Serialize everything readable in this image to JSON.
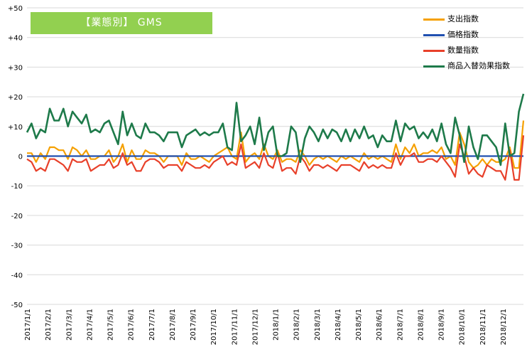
{
  "chart_data": {
    "type": "line",
    "title": "【業態別】 GMS",
    "ylim": [
      -50,
      50
    ],
    "yticks": [
      50,
      40,
      30,
      20,
      10,
      0,
      -10,
      -20,
      -30,
      -40,
      -50
    ],
    "ytick_labels": [
      "+50",
      "+40",
      "+30",
      "+20",
      "+10",
      "0",
      "-10",
      "-20",
      "-30",
      "-40",
      "-50"
    ],
    "xtick_labels": [
      "2017/1/1",
      "2017/2/1",
      "2017/3/1",
      "2017/4/1",
      "2017/5/1",
      "2017/6/1",
      "2017/7/1",
      "2017/8/1",
      "2017/9/1",
      "2017/10/1",
      "2017/11/1",
      "2017/12/1",
      "2018/1/1",
      "2018/2/1",
      "2018/3/1",
      "2018/4/1",
      "2018/5/1",
      "2018/6/1",
      "2018/7/1",
      "2018/8/1",
      "2018/9/1",
      "2018/10/1",
      "2018/11/1",
      "2018/12/1"
    ],
    "grid": true,
    "legend_position": "top-right",
    "series": [
      {
        "name": "支出指数",
        "color": "#f5a000",
        "values": [
          1,
          1,
          -2,
          1,
          -1,
          3,
          3,
          2,
          2,
          -1,
          3,
          2,
          0,
          2,
          -1,
          -1,
          0,
          0,
          2,
          -2,
          0,
          4,
          -2,
          2,
          -1,
          -1,
          2,
          1,
          1,
          0,
          -2,
          0,
          0,
          0,
          -3,
          1,
          -1,
          -1,
          0,
          -1,
          -2,
          0,
          1,
          2,
          3,
          0,
          -1,
          8,
          -2,
          0,
          1,
          -1,
          4,
          0,
          -1,
          2,
          -2,
          -1,
          -1,
          -2,
          2,
          0,
          -3,
          -1,
          0,
          -1,
          0,
          -1,
          -2,
          0,
          -1,
          0,
          -1,
          -2,
          1,
          -1,
          0,
          -1,
          0,
          -1,
          -2,
          4,
          -1,
          3,
          1,
          4,
          0,
          1,
          1,
          2,
          1,
          3,
          -1,
          0,
          -3,
          8,
          4,
          -2,
          -4,
          -3,
          -1,
          -3,
          -1,
          -2,
          -2,
          -1,
          3,
          -4,
          -4,
          12
        ]
      },
      {
        "name": "価格指数",
        "color": "#2050b0",
        "values": [
          0,
          0,
          0,
          0,
          0,
          0,
          0,
          0,
          0,
          0,
          0,
          0,
          0,
          0,
          0,
          0,
          0,
          0,
          0,
          0,
          0,
          0,
          0,
          0,
          0,
          0,
          0,
          0,
          0,
          0,
          0,
          0,
          0,
          0,
          0,
          0,
          0,
          0,
          0,
          0,
          0,
          0,
          0,
          0,
          0,
          0,
          0,
          0,
          0,
          0,
          0,
          0,
          0,
          0,
          0,
          0,
          0,
          0,
          0,
          0,
          0,
          0,
          0,
          0,
          0,
          0,
          0,
          0,
          0,
          0,
          0,
          0,
          0,
          0,
          0,
          0,
          0,
          0,
          0,
          0,
          0,
          0,
          0,
          0,
          0,
          0,
          0,
          0,
          0,
          0,
          0,
          0,
          0,
          0,
          0,
          0,
          0,
          0,
          0,
          0,
          0,
          0,
          0,
          0,
          0,
          0,
          0,
          0,
          0,
          0,
          0
        ]
      },
      {
        "name": "数量指数",
        "color": "#e8402a",
        "values": [
          -1,
          -2,
          -5,
          -4,
          -5,
          -1,
          -1,
          -2,
          -3,
          -5,
          -1,
          -2,
          -2,
          -1,
          -5,
          -4,
          -3,
          -3,
          -1,
          -4,
          -3,
          1,
          -3,
          -2,
          -5,
          -5,
          -2,
          -1,
          -1,
          -2,
          -4,
          -3,
          -3,
          -3,
          -5,
          -2,
          -3,
          -4,
          -4,
          -3,
          -4,
          -2,
          -1,
          0,
          -3,
          -2,
          -3,
          4,
          -4,
          -3,
          -2,
          -4,
          1,
          -3,
          -4,
          1,
          -5,
          -4,
          -4,
          -6,
          0,
          -2,
          -5,
          -3,
          -3,
          -4,
          -3,
          -4,
          -5,
          -3,
          -3,
          -3,
          -4,
          -5,
          -2,
          -4,
          -3,
          -4,
          -3,
          -4,
          -4,
          1,
          -3,
          0,
          0,
          1,
          -2,
          -2,
          -1,
          -1,
          -2,
          0,
          -2,
          -4,
          -7,
          4,
          0,
          -6,
          -4,
          -6,
          -7,
          -3,
          -4,
          -5,
          -5,
          -8,
          2,
          -8,
          -8,
          7
        ]
      },
      {
        "name": "商品入替効果指数",
        "color": "#1e7a4a",
        "values": [
          8,
          11,
          6,
          9,
          8,
          16,
          12,
          12,
          16,
          10,
          15,
          13,
          11,
          14,
          8,
          9,
          8,
          11,
          12,
          8,
          4,
          15,
          7,
          11,
          7,
          6,
          11,
          8,
          8,
          7,
          5,
          8,
          8,
          8,
          3,
          7,
          8,
          9,
          7,
          8,
          7,
          8,
          8,
          11,
          3,
          2,
          18,
          5,
          7,
          10,
          4,
          13,
          2,
          8,
          10,
          0,
          0,
          1,
          10,
          8,
          -2,
          6,
          10,
          8,
          5,
          9,
          6,
          9,
          8,
          5,
          9,
          5,
          9,
          6,
          10,
          6,
          7,
          3,
          7,
          5,
          5,
          12,
          5,
          11,
          9,
          10,
          6,
          8,
          6,
          9,
          5,
          11,
          4,
          1,
          13,
          7,
          -2,
          10,
          3,
          -1,
          7,
          7,
          5,
          3,
          -3,
          11,
          0,
          1,
          15,
          21
        ]
      }
    ]
  }
}
